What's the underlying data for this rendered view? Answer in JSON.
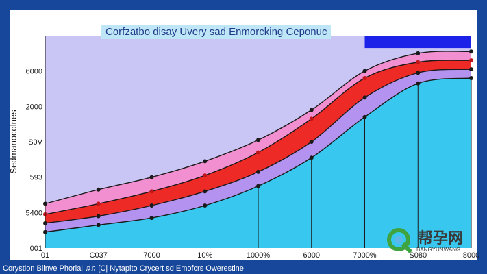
{
  "chart_data": {
    "type": "area",
    "title": "Corfzatbo disay Uvery sad Enmorcking Ceponuc",
    "ylabel": "Sedmanocolnes",
    "xlabel": "",
    "footer": "Corystion Blinve Phorial ♫♫ [C| Nytapito Crycert sd Emofcrs Owerestine",
    "ytick_labels": [
      "001",
      "5400",
      "593",
      "S0V",
      "2000",
      "6000"
    ],
    "xtick_labels": [
      "01",
      "C037",
      "7000",
      "10%",
      "1000%",
      "6000",
      "7000%",
      "S080",
      "8000"
    ],
    "x": [
      0,
      1,
      2,
      3,
      4,
      5,
      6,
      7,
      8
    ],
    "ylim": [
      0,
      6000
    ],
    "series": [
      {
        "values": [
          1250,
          1650,
          2000,
          2450,
          3050,
          3900,
          5000,
          5500,
          5550
        ],
        "color": "#f28fd0"
      },
      {
        "values": [
          950,
          1250,
          1600,
          2050,
          2700,
          3650,
          4800,
          5250,
          5300
        ],
        "color": "#ee2a26"
      },
      {
        "values": [
          700,
          900,
          1200,
          1600,
          2150,
          3000,
          4250,
          4950,
          5050
        ],
        "color": "#b493f0"
      },
      {
        "values": [
          450,
          650,
          850,
          1200,
          1750,
          2550,
          3700,
          4650,
          4800
        ],
        "color": "#38c8ef"
      }
    ],
    "colors": {
      "plot_bg": "#c9c6f6",
      "band_top": "#1c22e8",
      "border": "#17479a"
    },
    "grid": false
  },
  "watermark": {
    "text": "帮孕网",
    "sub": "BANGYUNWANG"
  }
}
